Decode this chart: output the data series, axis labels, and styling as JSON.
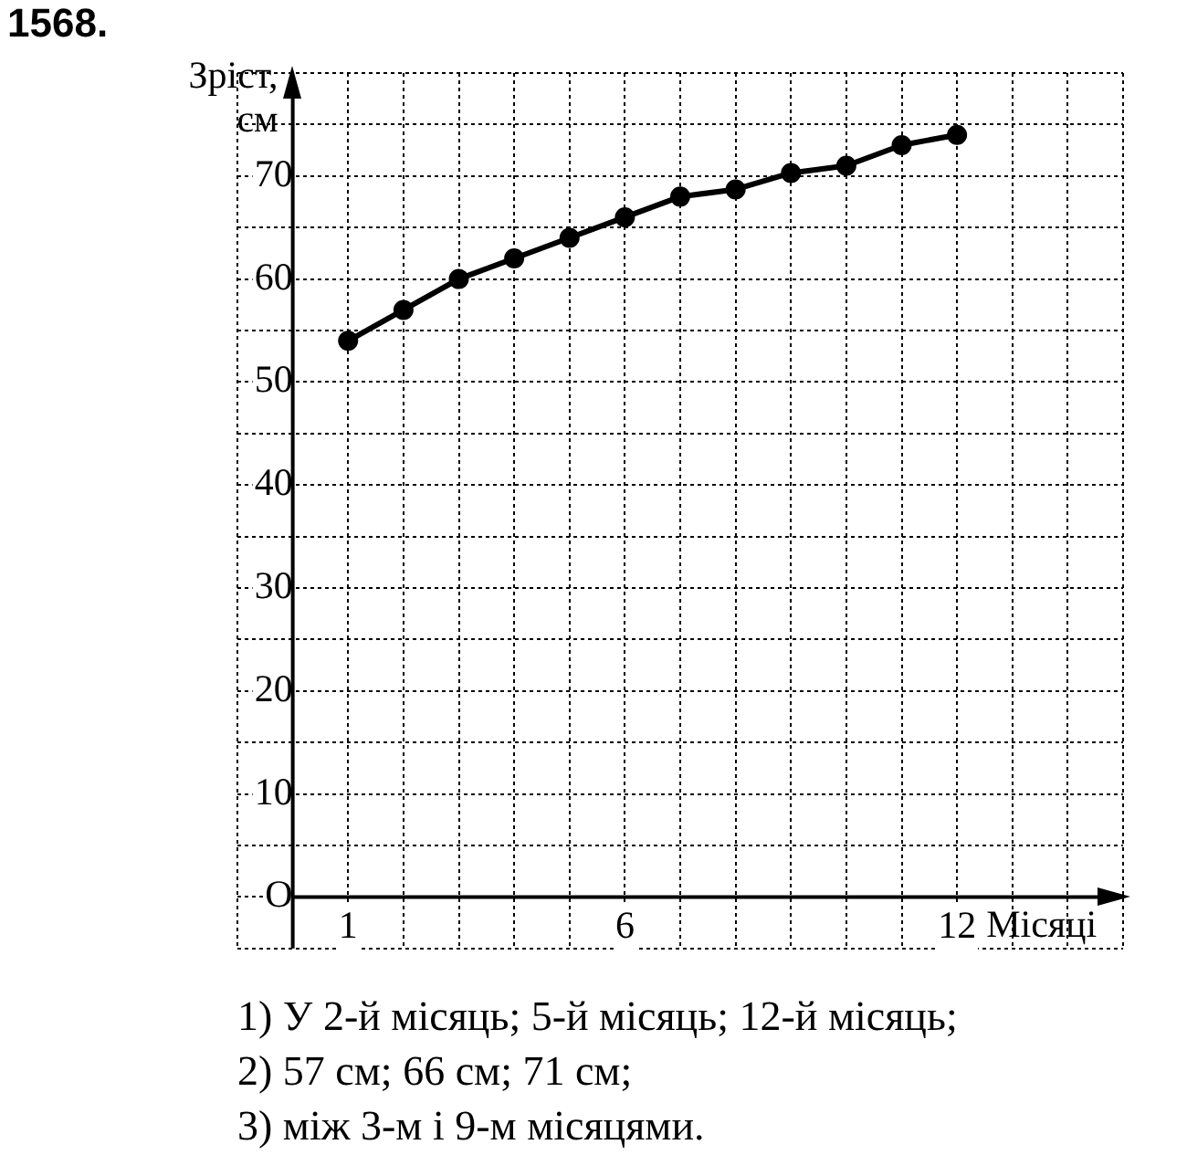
{
  "chart_data": {
    "type": "line",
    "title": "1568.",
    "ylabel": "Зріст, см",
    "xlabel": "Місяці",
    "x": [
      1,
      2,
      3,
      4,
      5,
      6,
      7,
      8,
      9,
      10,
      11,
      12
    ],
    "series": [
      {
        "color": "#000000",
        "values": [
          54,
          57,
          60,
          62,
          64,
          66,
          68,
          68.7,
          70.3,
          71,
          73,
          74
        ]
      }
    ],
    "xlim": [
      -1,
      15
    ],
    "xticks": [
      {
        "value": -1,
        "label": null
      },
      {
        "value": 0,
        "label": null
      },
      1,
      {
        "value": 2,
        "label": null
      },
      {
        "value": 3,
        "label": null
      },
      {
        "value": 4,
        "label": null
      },
      {
        "value": 5,
        "label": null
      },
      6,
      {
        "value": 7,
        "label": null
      },
      {
        "value": 8,
        "label": null
      },
      {
        "value": 9,
        "label": null
      },
      {
        "value": 10,
        "label": null
      },
      {
        "value": 11,
        "label": null
      },
      12,
      {
        "value": 13,
        "label": null
      },
      {
        "value": 14,
        "label": null
      },
      {
        "value": 15,
        "label": null
      }
    ],
    "ylim": [
      -5,
      80
    ],
    "yticks": [
      {
        "value": -5,
        "label": null
      },
      {
        "value": 0,
        "label": "O"
      },
      {
        "value": 5,
        "label": null
      },
      10,
      {
        "value": 15,
        "label": null
      },
      20,
      {
        "value": 25,
        "label": null
      },
      30,
      {
        "value": 35,
        "label": null
      },
      40,
      {
        "value": 45,
        "label": null
      },
      50,
      {
        "value": 55,
        "label": null
      },
      60,
      {
        "value": 65,
        "label": null
      },
      70,
      {
        "value": 75,
        "label": null
      },
      {
        "value": 80,
        "label": null
      }
    ],
    "grid": true,
    "legend": false,
    "marker": "circle",
    "line_style": "solid",
    "annotations": [
      "1) У 2-й місяць; 5-й місяць; 12-й місяць;",
      "2) 57 см; 66 см; 71 см;",
      "3) між 3-м і 9-м місяцями."
    ]
  }
}
